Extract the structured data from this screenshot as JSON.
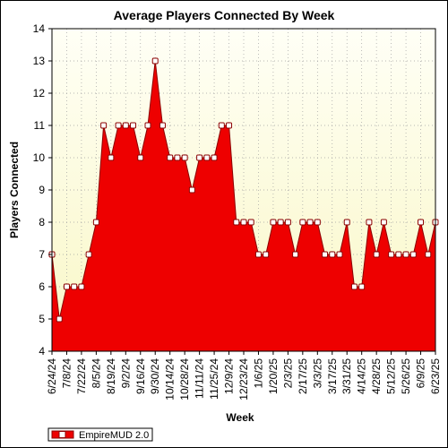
{
  "chart_data": {
    "type": "area",
    "title": "Average Players Connected By Week",
    "xlabel": "Week",
    "ylabel": "Players Connected",
    "ylim": [
      4,
      14
    ],
    "yticks": [
      4,
      5,
      6,
      7,
      8,
      9,
      10,
      11,
      12,
      13,
      14
    ],
    "grid": true,
    "legend_position": "bottom-left",
    "colors": {
      "fill": "#ee0000",
      "line": "#8b0000",
      "marker_fill": "#ffffff",
      "plot_bg_top": "#fffff6",
      "plot_bg_bottom": "#f9f7c6",
      "grid": "#a0a0a0"
    },
    "tick_labels": [
      "6/24/24",
      "7/8/24",
      "7/22/24",
      "8/5/24",
      "8/19/24",
      "9/2/24",
      "9/16/24",
      "9/30/24",
      "10/14/24",
      "10/28/24",
      "11/11/24",
      "11/25/24",
      "12/9/24",
      "12/23/24",
      "1/6/25",
      "1/20/25",
      "2/3/25",
      "2/17/25",
      "3/3/25",
      "3/17/25",
      "3/31/25",
      "4/14/25",
      "4/28/25",
      "5/12/25",
      "5/26/25",
      "6/9/25",
      "6/23/25"
    ],
    "x": [
      "6/24/24",
      "7/1/24",
      "7/8/24",
      "7/15/24",
      "7/22/24",
      "7/29/24",
      "8/5/24",
      "8/12/24",
      "8/19/24",
      "8/26/24",
      "9/2/24",
      "9/9/24",
      "9/16/24",
      "9/23/24",
      "9/30/24",
      "10/7/24",
      "10/14/24",
      "10/21/24",
      "10/28/24",
      "11/4/24",
      "11/11/24",
      "11/18/24",
      "11/25/24",
      "12/2/24",
      "12/9/24",
      "12/16/24",
      "12/23/24",
      "12/30/24",
      "1/6/25",
      "1/13/25",
      "1/20/25",
      "1/27/25",
      "2/3/25",
      "2/10/25",
      "2/17/25",
      "2/24/25",
      "3/3/25",
      "3/10/25",
      "3/17/25",
      "3/24/25",
      "3/31/25",
      "4/7/25",
      "4/14/25",
      "4/21/25",
      "4/28/25",
      "5/5/25",
      "5/12/25",
      "5/19/25",
      "5/26/25",
      "6/2/25",
      "6/9/25",
      "6/16/25",
      "6/23/25"
    ],
    "series": [
      {
        "name": "EmpireMUD 2.0",
        "values": [
          7,
          5,
          6,
          6,
          6,
          7,
          8,
          11,
          10,
          11,
          11,
          11,
          10,
          11,
          13,
          11,
          10,
          10,
          10,
          9,
          10,
          10,
          10,
          11,
          11,
          8,
          8,
          8,
          7,
          7,
          8,
          8,
          8,
          7,
          8,
          8,
          8,
          7,
          7,
          7,
          8,
          6,
          6,
          8,
          7,
          8,
          7,
          7,
          7,
          7,
          8,
          7,
          8
        ]
      }
    ]
  }
}
